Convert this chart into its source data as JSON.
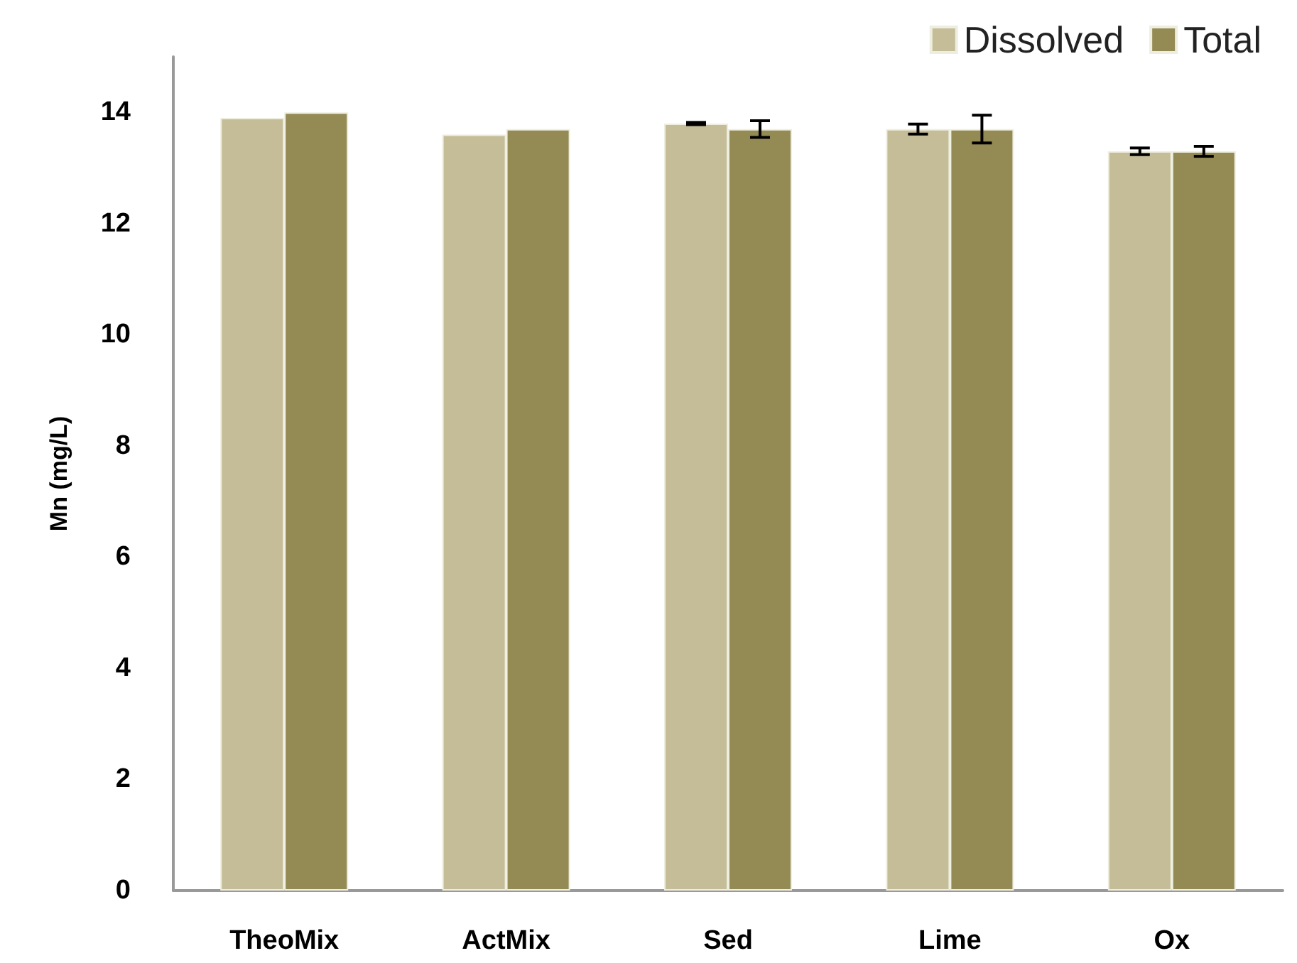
{
  "chart_data": {
    "type": "bar",
    "ylabel": "Mn (mg/L)",
    "categories": [
      "TheoMix",
      "ActMix",
      "Sed",
      "Lime",
      "Ox"
    ],
    "series": [
      {
        "name": "Dissolved",
        "color": "#c4bd97",
        "values": [
          13.9,
          13.6,
          13.8,
          13.7,
          13.3
        ],
        "errors": [
          null,
          null,
          0.02,
          0.09,
          0.06
        ]
      },
      {
        "name": "Total",
        "color": "#948a54",
        "values": [
          14.0,
          13.7,
          13.7,
          13.7,
          13.3
        ],
        "errors": [
          null,
          null,
          0.15,
          0.25,
          0.09
        ]
      }
    ],
    "ylim": [
      0,
      15
    ],
    "yticks": [
      0,
      2,
      4,
      6,
      8,
      10,
      12,
      14
    ],
    "grid": false,
    "legend": "top right"
  }
}
